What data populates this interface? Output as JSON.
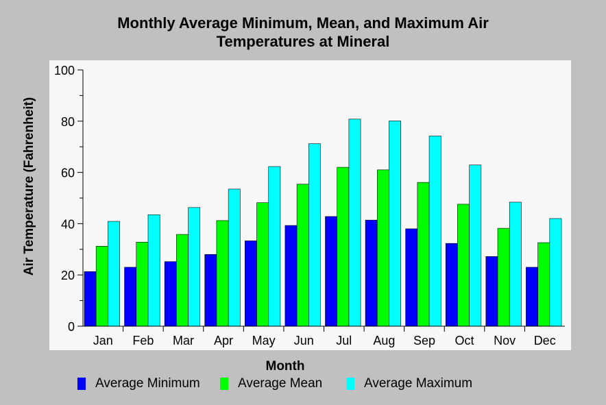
{
  "chart_data": {
    "type": "bar",
    "title_line1": "Monthly Average Minimum, Mean, and Maximum Air",
    "title_line2": "Temperatures at Mineral",
    "xlabel": "Month",
    "ylabel": "Air Temperature (Fahrenheit)",
    "ylim": [
      0,
      100
    ],
    "yticks": [
      "0",
      "20",
      "40",
      "60",
      "80",
      "100"
    ],
    "grid": false,
    "legend_position": "bottom",
    "categories": [
      "Jan",
      "Feb",
      "Mar",
      "Apr",
      "May",
      "Jun",
      "Jul",
      "Aug",
      "Sep",
      "Oct",
      "Nov",
      "Dec"
    ],
    "series": [
      {
        "name": "Average Minimum",
        "color": "#0000ff",
        "values": [
          21.3,
          23.0,
          25.2,
          28.0,
          33.3,
          39.3,
          42.8,
          41.4,
          38.0,
          32.3,
          27.2,
          23.0
        ]
      },
      {
        "name": "Average Mean",
        "color": "#00ff00",
        "values": [
          31.2,
          32.8,
          35.8,
          41.2,
          48.2,
          55.4,
          62.0,
          61.0,
          56.1,
          47.6,
          38.2,
          32.6
        ]
      },
      {
        "name": "Average Maximum",
        "color": "#00ffff",
        "values": [
          40.9,
          43.5,
          46.3,
          53.5,
          62.3,
          71.2,
          80.8,
          80.1,
          74.2,
          62.9,
          48.4,
          42.0
        ]
      }
    ]
  }
}
